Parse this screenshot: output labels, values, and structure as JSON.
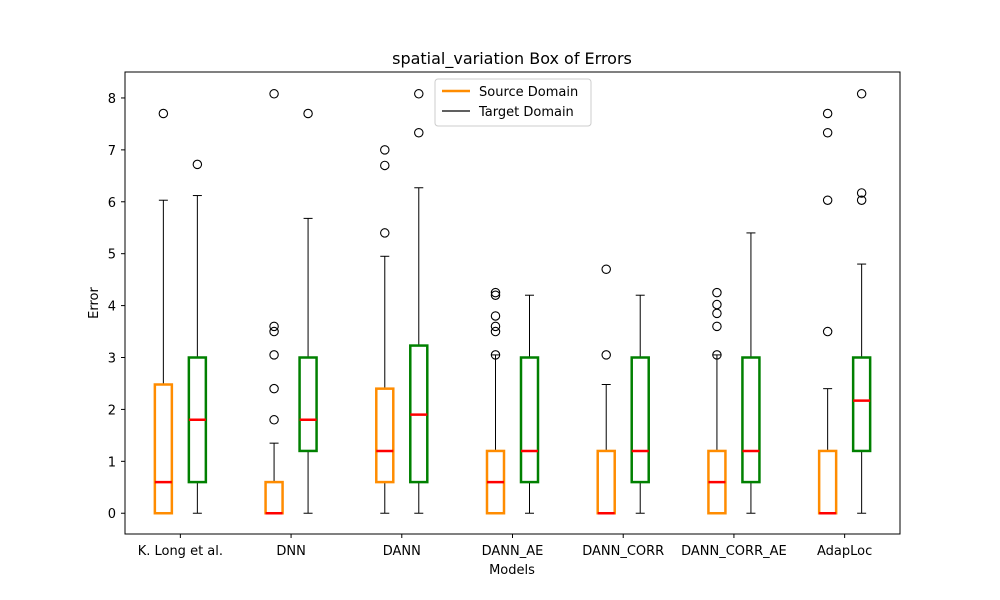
{
  "chart_data": {
    "type": "box",
    "title": "spatial_variation Box of Errors",
    "xlabel": "Models",
    "ylabel": "Error",
    "ylim": [
      -0.4,
      8.5
    ],
    "yticks": [
      0,
      1,
      2,
      3,
      4,
      5,
      6,
      7,
      8
    ],
    "categories": [
      "K. Long et al.",
      "DNN",
      "DANN",
      "DANN_AE",
      "DANN_CORR",
      "DANN_CORR_AE",
      "AdapLoc"
    ],
    "legend": {
      "position": "upper center",
      "entries": [
        "Source Domain",
        "Target Domain"
      ]
    },
    "colors": {
      "source": "#ff8c00",
      "target": "#008000",
      "median": "#ff0000",
      "whisker": "#000000"
    },
    "series": [
      {
        "name": "Source Domain",
        "boxes": [
          {
            "whislo": 0,
            "q1": 0,
            "med": 0.6,
            "q3": 2.48,
            "whishi": 6.03,
            "fliers": [
              7.7
            ]
          },
          {
            "whislo": 0,
            "q1": 0,
            "med": 0,
            "q3": 0.6,
            "whishi": 1.35,
            "fliers": [
              1.8,
              2.4,
              3.05,
              3.5,
              3.6,
              8.08
            ]
          },
          {
            "whislo": 0,
            "q1": 0.6,
            "med": 1.2,
            "q3": 2.4,
            "whishi": 4.95,
            "fliers": [
              5.4,
              6.7,
              7.0
            ]
          },
          {
            "whislo": 0,
            "q1": 0,
            "med": 0.6,
            "q3": 1.2,
            "whishi": 3.05,
            "fliers": [
              3.05,
              3.5,
              3.6,
              3.8,
              4.2,
              4.25
            ]
          },
          {
            "whislo": 0,
            "q1": 0,
            "med": 0,
            "q3": 1.2,
            "whishi": 2.48,
            "fliers": [
              3.05,
              4.7
            ]
          },
          {
            "whislo": 0,
            "q1": 0,
            "med": 0.6,
            "q3": 1.2,
            "whishi": 3.05,
            "fliers": [
              3.05,
              3.6,
              3.85,
              4.02,
              4.25
            ]
          },
          {
            "whislo": 0,
            "q1": 0,
            "med": 0,
            "q3": 1.2,
            "whishi": 2.4,
            "fliers": [
              3.5,
              6.03,
              7.33,
              7.7
            ]
          }
        ]
      },
      {
        "name": "Target Domain",
        "boxes": [
          {
            "whislo": 0,
            "q1": 0.6,
            "med": 1.8,
            "q3": 3.0,
            "whishi": 6.12,
            "fliers": [
              6.72
            ]
          },
          {
            "whislo": 0,
            "q1": 1.2,
            "med": 1.8,
            "q3": 3.0,
            "whishi": 5.68,
            "fliers": [
              7.7
            ]
          },
          {
            "whislo": 0,
            "q1": 0.6,
            "med": 1.9,
            "q3": 3.23,
            "whishi": 6.27,
            "fliers": [
              7.33,
              8.08
            ]
          },
          {
            "whislo": 0,
            "q1": 0.6,
            "med": 1.2,
            "q3": 3.0,
            "whishi": 4.2,
            "fliers": []
          },
          {
            "whislo": 0,
            "q1": 0.6,
            "med": 1.2,
            "q3": 3.0,
            "whishi": 4.2,
            "fliers": []
          },
          {
            "whislo": 0,
            "q1": 0.6,
            "med": 1.2,
            "q3": 3.0,
            "whishi": 5.4,
            "fliers": []
          },
          {
            "whislo": 0,
            "q1": 1.2,
            "med": 2.17,
            "q3": 3.0,
            "whishi": 4.8,
            "fliers": [
              6.03,
              6.17,
              8.08
            ]
          }
        ]
      }
    ]
  }
}
